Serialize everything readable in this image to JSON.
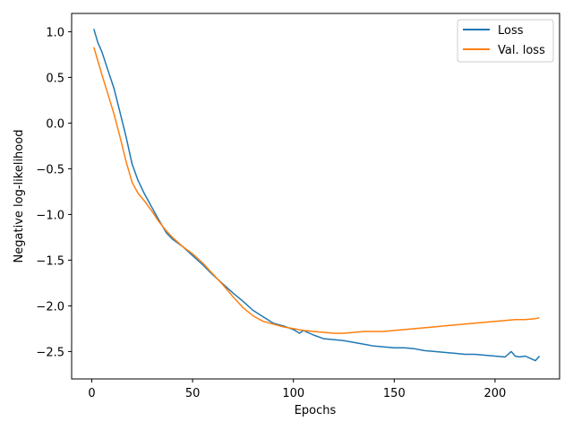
{
  "chart_data": {
    "type": "line",
    "title": "",
    "xlabel": "Epochs",
    "ylabel": "Negative log-likelihood",
    "xlim": [
      -10,
      232
    ],
    "ylim": [
      -2.8,
      1.2
    ],
    "x_ticks": [
      0,
      50,
      100,
      150,
      200
    ],
    "x_tick_labels": [
      "0",
      "50",
      "100",
      "150",
      "200"
    ],
    "y_ticks": [
      1.0,
      0.5,
      0.0,
      -0.5,
      -1.0,
      -1.5,
      -2.0,
      -2.5
    ],
    "y_tick_labels": [
      "1.0",
      "0.5",
      "0.0",
      "−0.5",
      "−1.0",
      "−1.5",
      "−2.0",
      "−2.5"
    ],
    "grid": false,
    "legend_position": "top-right",
    "series": [
      {
        "name": "Loss",
        "color": "#1f77b4",
        "x": [
          1,
          3,
          5,
          8,
          11,
          14,
          17,
          20,
          23,
          26,
          30,
          33,
          37,
          40,
          45,
          50,
          55,
          60,
          65,
          70,
          75,
          80,
          85,
          90,
          95,
          100,
          103,
          105,
          108,
          110,
          115,
          120,
          125,
          130,
          135,
          140,
          145,
          150,
          155,
          160,
          165,
          170,
          175,
          180,
          185,
          190,
          195,
          200,
          205,
          208,
          210,
          212,
          215,
          218,
          220,
          222
        ],
        "y": [
          1.03,
          0.88,
          0.78,
          0.58,
          0.38,
          0.12,
          -0.15,
          -0.45,
          -0.63,
          -0.77,
          -0.93,
          -1.05,
          -1.2,
          -1.27,
          -1.35,
          -1.45,
          -1.55,
          -1.66,
          -1.76,
          -1.86,
          -1.95,
          -2.05,
          -2.12,
          -2.19,
          -2.22,
          -2.26,
          -2.3,
          -2.27,
          -2.3,
          -2.32,
          -2.36,
          -2.37,
          -2.38,
          -2.4,
          -2.42,
          -2.44,
          -2.45,
          -2.46,
          -2.46,
          -2.47,
          -2.49,
          -2.5,
          -2.51,
          -2.52,
          -2.53,
          -2.53,
          -2.54,
          -2.55,
          -2.56,
          -2.5,
          -2.55,
          -2.56,
          -2.55,
          -2.58,
          -2.6,
          -2.55
        ]
      },
      {
        "name": "Val. loss",
        "color": "#ff7f0e",
        "x": [
          1,
          3,
          5,
          8,
          11,
          14,
          17,
          20,
          23,
          26,
          30,
          33,
          37,
          40,
          45,
          50,
          55,
          60,
          65,
          70,
          75,
          80,
          85,
          90,
          95,
          100,
          105,
          110,
          115,
          120,
          125,
          130,
          135,
          140,
          145,
          150,
          155,
          160,
          165,
          170,
          175,
          180,
          185,
          190,
          195,
          200,
          205,
          210,
          215,
          220,
          222
        ],
        "y": [
          0.83,
          0.68,
          0.53,
          0.32,
          0.1,
          -0.15,
          -0.42,
          -0.65,
          -0.77,
          -0.85,
          -0.97,
          -1.07,
          -1.18,
          -1.25,
          -1.35,
          -1.43,
          -1.53,
          -1.65,
          -1.77,
          -1.9,
          -2.02,
          -2.11,
          -2.17,
          -2.2,
          -2.23,
          -2.25,
          -2.27,
          -2.28,
          -2.29,
          -2.3,
          -2.3,
          -2.29,
          -2.28,
          -2.28,
          -2.28,
          -2.27,
          -2.26,
          -2.25,
          -2.24,
          -2.23,
          -2.22,
          -2.21,
          -2.2,
          -2.19,
          -2.18,
          -2.17,
          -2.16,
          -2.15,
          -2.15,
          -2.14,
          -2.13
        ]
      }
    ]
  }
}
